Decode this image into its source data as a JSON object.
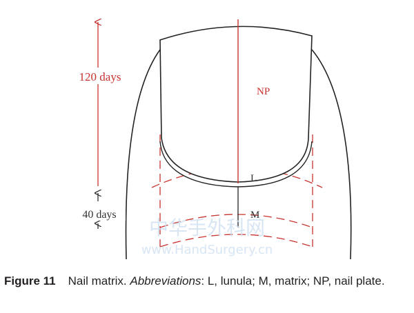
{
  "figure": {
    "labels": {
      "upper_days": "120 days",
      "lower_days": "40 days",
      "nail_plate": "NP",
      "lunula": "L",
      "matrix": "M"
    },
    "watermark": {
      "site_name": "中华手外科网",
      "url": "www.HandSurgery.cn"
    },
    "caption": {
      "number": "Figure 11",
      "text": "Nail matrix.",
      "abbreviations_label": "Abbreviations",
      "abbreviations": ": L, lunula; M, matrix; NP, nail plate."
    }
  }
}
